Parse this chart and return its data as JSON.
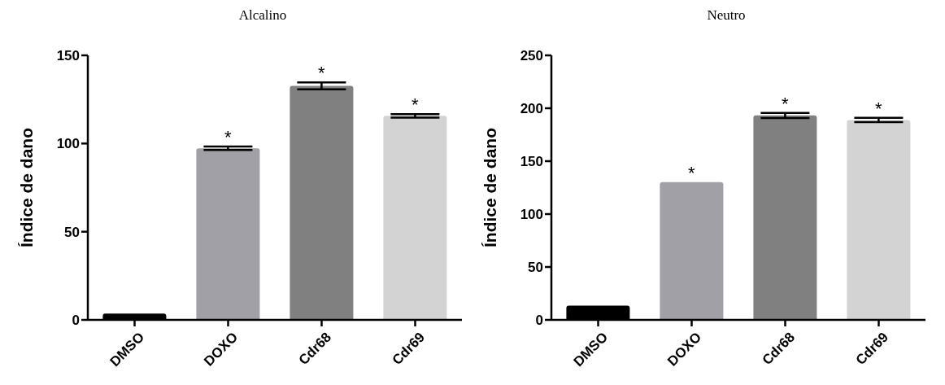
{
  "chart_data": [
    {
      "type": "bar",
      "title": "Alcalino",
      "ylabel": "Índice de dano",
      "categories": [
        "DMSO",
        "DOXO",
        "Cdr68",
        "Cdr69"
      ],
      "values": [
        3.6,
        97.3,
        132.7,
        115.7
      ],
      "errors": [
        null,
        1,
        2,
        1
      ],
      "colors": [
        "#000000",
        "#a0a0a6",
        "#808080",
        "#d3d3d3"
      ],
      "ylim": [
        0,
        150
      ],
      "yticks": [
        0,
        50,
        100,
        150
      ],
      "grid": false,
      "legend": false,
      "value_labels": [
        null,
        "*",
        "*",
        "*"
      ]
    },
    {
      "type": "bar",
      "title": "Neutro",
      "ylabel": "Índice de dano",
      "categories": [
        "DMSO",
        "DOXO",
        "Cdr68",
        "Cdr69"
      ],
      "values": [
        13.4,
        130.2,
        193.2,
        188.9
      ],
      "errors": [
        null,
        null,
        2.4,
        2
      ],
      "colors": [
        "#000000",
        "#a0a0a6",
        "#808080",
        "#d3d3d3"
      ],
      "ylim": [
        0,
        250
      ],
      "yticks": [
        0,
        50,
        100,
        150,
        200,
        250
      ],
      "grid": false,
      "legend": false,
      "value_labels": [
        null,
        "*",
        "*",
        "*"
      ]
    }
  ]
}
